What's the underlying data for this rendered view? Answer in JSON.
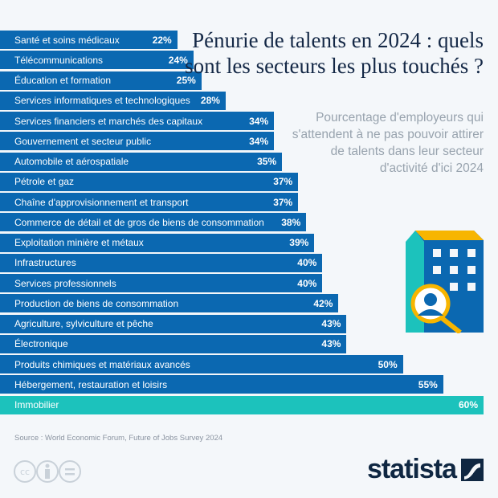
{
  "chart_data": {
    "type": "bar",
    "orientation": "horizontal",
    "title": "Pénurie de talents en 2024 : quels sont les secteurs les plus touchés ?",
    "subtitle": "Pourcentage d'employeurs qui s'attendent à ne pas pouvoir attirer de talents dans leur secteur d'activité d'ici 2024",
    "xlim": [
      0,
      60
    ],
    "grid": false,
    "categories": [
      "Santé et soins médicaux",
      "Télécommunications",
      "Éducation et formation",
      "Services informatiques et technologiques",
      "Services financiers et marchés des capitaux",
      "Gouvernement et secteur public",
      "Automobile et aérospatiale",
      "Pétrole et gaz",
      "Chaîne d'approvisionnement et transport",
      "Commerce de détail et de gros de biens de consommation",
      "Exploitation minière et métaux",
      "Infrastructures",
      "Services professionnels",
      "Production de biens de consommation",
      "Agriculture, sylviculture et pêche",
      "Électronique",
      "Produits chimiques et matériaux avancés",
      "Hébergement, restauration et loisirs",
      "Immobilier"
    ],
    "values": [
      22,
      24,
      25,
      28,
      34,
      34,
      35,
      37,
      37,
      38,
      39,
      40,
      40,
      42,
      43,
      43,
      50,
      55,
      60
    ],
    "value_labels": [
      "22%",
      "24%",
      "25%",
      "28%",
      "34%",
      "34%",
      "35%",
      "37%",
      "37%",
      "38%",
      "39%",
      "40%",
      "40%",
      "42%",
      "43%",
      "43%",
      "50%",
      "55%",
      "60%"
    ],
    "colors": {
      "default": "#0b68b1",
      "highlight": "#1cc2bc"
    },
    "highlight_category": "Immobilier"
  },
  "source": "Source : World Economic Forum, Future of Jobs Survey 2024",
  "brand": "statista",
  "icons": [
    "cc-icon",
    "attribution-icon",
    "no-derivatives-icon",
    "building-search-icon"
  ]
}
